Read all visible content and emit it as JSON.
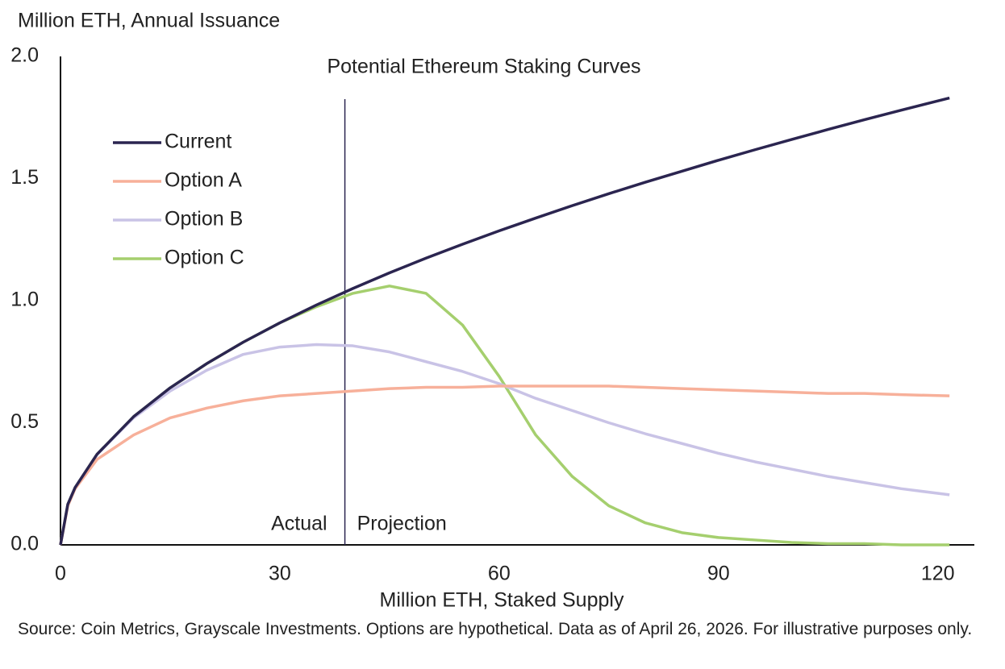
{
  "chart_data": {
    "type": "line",
    "title": "Potential Ethereum Staking Curves",
    "y_label": "Million ETH, Annual Issuance",
    "x_label": "Million ETH, Staked Supply",
    "source": "Source: Coin Metrics, Grayscale Investments. Options are hypothetical. Data as of April 26, 2026. For illustrative purposes only.",
    "x": [
      0,
      1,
      2,
      5,
      10,
      15,
      20,
      25,
      30,
      35,
      40,
      45,
      50,
      55,
      60,
      65,
      70,
      75,
      80,
      85,
      90,
      95,
      100,
      105,
      110,
      115,
      121.6
    ],
    "series": [
      {
        "name": "Current",
        "color": "#2b2550",
        "values": [
          0,
          0.166,
          0.235,
          0.371,
          0.525,
          0.643,
          0.742,
          0.83,
          0.909,
          0.982,
          1.05,
          1.114,
          1.174,
          1.231,
          1.286,
          1.338,
          1.389,
          1.438,
          1.485,
          1.53,
          1.575,
          1.618,
          1.66,
          1.701,
          1.741,
          1.78,
          1.83
        ]
      },
      {
        "name": "Option A",
        "color": "#f7b09a",
        "values": [
          0,
          0.16,
          0.23,
          0.35,
          0.45,
          0.52,
          0.56,
          0.59,
          0.61,
          0.62,
          0.63,
          0.64,
          0.645,
          0.645,
          0.65,
          0.65,
          0.65,
          0.65,
          0.645,
          0.64,
          0.635,
          0.63,
          0.625,
          0.62,
          0.62,
          0.615,
          0.61
        ]
      },
      {
        "name": "Option B",
        "color": "#c9c3e6",
        "values": [
          0,
          0.166,
          0.235,
          0.37,
          0.52,
          0.63,
          0.715,
          0.78,
          0.81,
          0.82,
          0.815,
          0.79,
          0.75,
          0.71,
          0.66,
          0.6,
          0.55,
          0.5,
          0.455,
          0.415,
          0.375,
          0.34,
          0.31,
          0.28,
          0.255,
          0.23,
          0.205
        ]
      },
      {
        "name": "Option C",
        "color": "#a5cf6e",
        "values": [
          0,
          0.166,
          0.235,
          0.371,
          0.525,
          0.643,
          0.742,
          0.83,
          0.909,
          0.975,
          1.03,
          1.06,
          1.03,
          0.9,
          0.69,
          0.45,
          0.28,
          0.16,
          0.09,
          0.05,
          0.03,
          0.02,
          0.01,
          0.005,
          0.005,
          0,
          0
        ]
      }
    ],
    "divider": {
      "x": 38.9,
      "left_label": "Actual",
      "right_label": "Projection"
    },
    "xlim": [
      0,
      125
    ],
    "ylim": [
      0,
      2
    ],
    "xticks": [
      0,
      30,
      60,
      90,
      120
    ],
    "yticks": [
      {
        "value": 0,
        "label": "0.0"
      },
      {
        "value": 0.5,
        "label": "0.5"
      },
      {
        "value": 1,
        "label": "1.0"
      },
      {
        "value": 1.5,
        "label": "1.5"
      },
      {
        "value": 2,
        "label": "2.0"
      }
    ],
    "legend": "upper left",
    "grid": false
  }
}
